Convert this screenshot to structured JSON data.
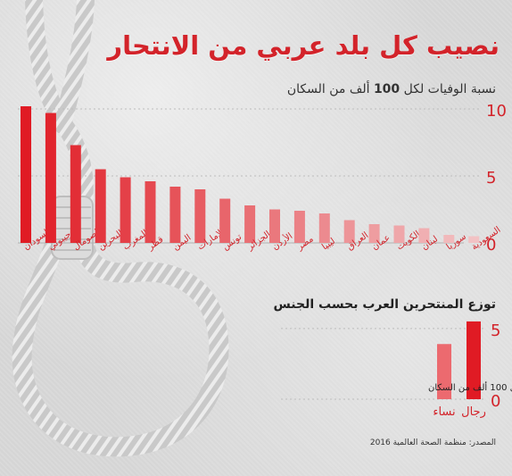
{
  "title": "نصيب كل بلد عربي من الانتحار",
  "source": "المصدر: منظمة الصحة العالمية 2016",
  "colors": {
    "accent": "#d3232a",
    "bar_start": "#e01b24",
    "bar_end": "#f2c2c4"
  },
  "chart_data": [
    {
      "type": "bar",
      "title": "نسبة الوفيات لكل 100 ألف من السكان",
      "title_number": "100",
      "title_before": "نسبة الوفيات لكل ",
      "title_after": " ألف من السكان",
      "ylim": [
        0,
        10
      ],
      "yticks": [
        {
          "value": 0,
          "label": "0"
        },
        {
          "value": 5,
          "label": "5"
        },
        {
          "value": 10,
          "label": "10"
        }
      ],
      "categories": [
        "السودان",
        "جيبوتي",
        "الصومال",
        "البحرين",
        "المغرب",
        "قطر",
        "اليمن",
        "الإمارات",
        "تونس",
        "الجزائر",
        "الأردن",
        "مصر",
        "ليبيا",
        "العراق",
        "عمان",
        "الكويت",
        "لبنان",
        "سوريا",
        "السعودية"
      ],
      "values": [
        10.2,
        9.7,
        7.3,
        5.5,
        4.9,
        4.6,
        4.2,
        4.0,
        3.3,
        2.8,
        2.5,
        2.4,
        2.2,
        1.7,
        1.4,
        1.3,
        1.1,
        0.6,
        0.5
      ]
    },
    {
      "type": "bar",
      "title": "توزع المنتحرين العرب بحسب الجنس",
      "axis_label": "نسبة الوفيات لكل 100 ألف من السكان",
      "ylim": [
        0,
        6
      ],
      "yticks": [
        {
          "value": 0,
          "label": "0"
        },
        {
          "value": 5,
          "label": "5"
        }
      ],
      "categories": [
        "رجال",
        "نساء"
      ],
      "values": [
        5.5,
        3.9
      ]
    }
  ]
}
